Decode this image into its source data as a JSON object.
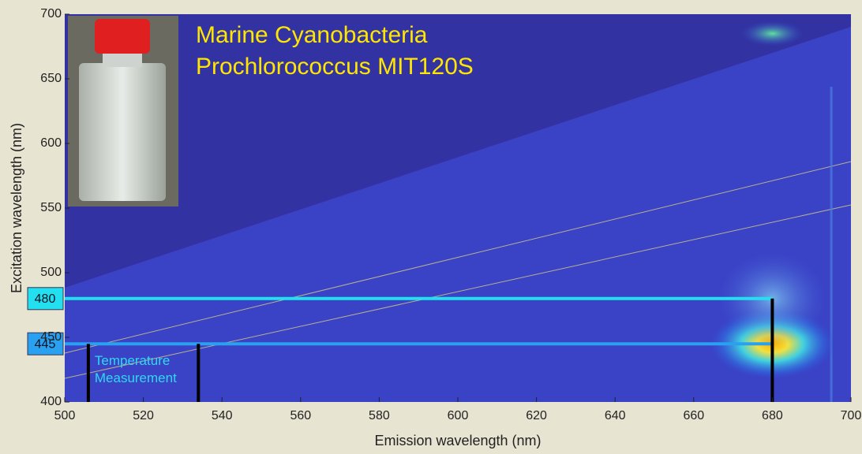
{
  "chart_data": {
    "type": "heatmap",
    "title": [
      "Marine Cyanobacteria",
      "Prochlorococcus MIT120S"
    ],
    "title_color": "#ffe600",
    "x_label": "Emission wavelength (nm)",
    "y_label": "Excitation wavelength (nm)",
    "xlim": [
      500,
      700
    ],
    "ylim": [
      400,
      700
    ],
    "xticks": [
      500,
      520,
      540,
      560,
      580,
      600,
      620,
      640,
      660,
      680,
      700
    ],
    "yticks": [
      400,
      450,
      500,
      550,
      600,
      650,
      700
    ],
    "excitation_markers": [
      {
        "value": 480,
        "color": "#22e0f0"
      },
      {
        "value": 445,
        "color": "#2aa0f0"
      }
    ],
    "emission_marker": 680,
    "temperature_band": [
      506,
      534
    ],
    "temperature_label": "Temperature Measurement",
    "peaks": [
      {
        "x": 680,
        "y": 445
      },
      {
        "x": 680,
        "y": 480
      },
      {
        "x": 680,
        "y": 685
      }
    ]
  }
}
